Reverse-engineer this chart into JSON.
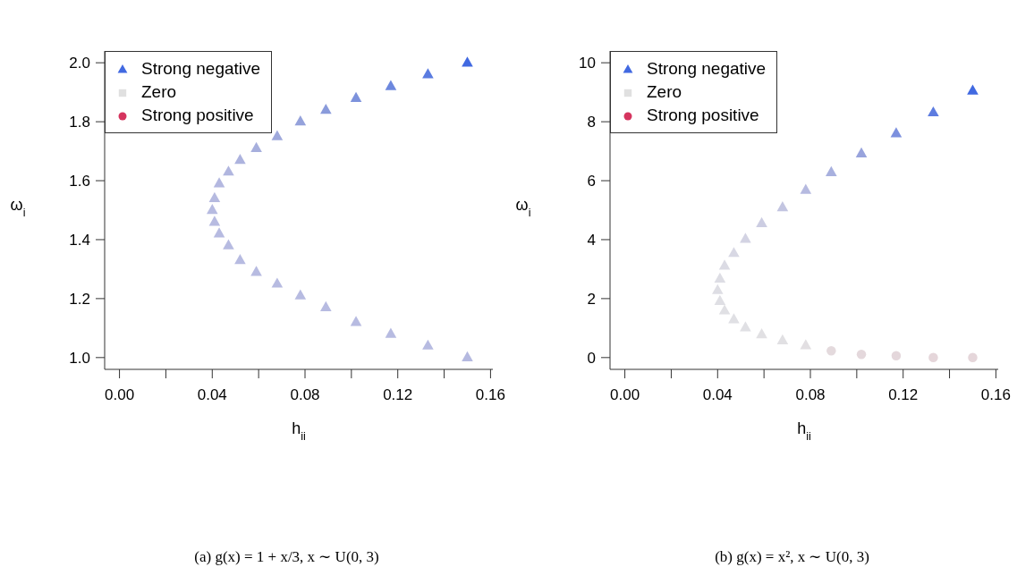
{
  "chart_data": [
    {
      "type": "scatter",
      "xlabel": "h$_{ii}$",
      "ylabel": "ω$_{i}$",
      "xlim": [
        -0.0064,
        0.161
      ],
      "ylim": [
        0.96,
        2.04
      ],
      "xticks": [
        {
          "value": 0,
          "label": "0.00"
        },
        {
          "value": 0.02,
          "label": null
        },
        {
          "value": 0.04,
          "label": "0.04"
        },
        {
          "value": 0.06,
          "label": null
        },
        {
          "value": 0.08,
          "label": "0.08"
        },
        {
          "value": 0.1,
          "label": null
        },
        {
          "value": 0.12,
          "label": "0.12"
        },
        {
          "value": 0.14,
          "label": null
        },
        {
          "value": 0.16,
          "label": "0.16"
        }
      ],
      "yticks": [
        {
          "value": 1,
          "label": "1.0"
        },
        {
          "value": 1.2,
          "label": "1.2"
        },
        {
          "value": 1.4,
          "label": "1.4"
        },
        {
          "value": 1.6,
          "label": "1.6"
        },
        {
          "value": 1.8,
          "label": "1.8"
        },
        {
          "value": 2,
          "label": "2.0"
        }
      ],
      "legend": "top left",
      "annotations": [
        "(a) g(x) = 1 + x/3, x ∼ U(0, 3)"
      ],
      "series": [
        {
          "name": "Strong negative",
          "color": "#4169e1",
          "marker": "triangle",
          "x": [
            0.15,
            0.133,
            0.117,
            0.102,
            0.089,
            0.078,
            0.068,
            0.059,
            0.052,
            0.047,
            0.043,
            0.041,
            0.04,
            0.041,
            0.043,
            0.047,
            0.052,
            0.059,
            0.068,
            0.078,
            0.089,
            0.102,
            0.117,
            0.133,
            0.15
          ],
          "values": [
            2.0,
            1.96,
            1.92,
            1.88,
            1.84,
            1.8,
            1.75,
            1.71,
            1.67,
            1.63,
            1.59,
            1.54,
            1.5,
            1.46,
            1.42,
            1.38,
            1.33,
            1.29,
            1.25,
            1.21,
            1.17,
            1.12,
            1.08,
            1.04,
            1.0
          ],
          "colors": [
            "#4169e1",
            "#5a7be0",
            "#6d88de",
            "#7d92dc",
            "#8a9bdb",
            "#95a2db",
            "#9fa9dc",
            "#a7afdd",
            "#adb3de",
            "#b1b6df",
            "#b4b8e0",
            "#b6bae0",
            "#b7bbe1",
            "#b7bbe1",
            "#b7bbe1",
            "#b7bbe1",
            "#b7bbe1",
            "#b7bbe1",
            "#b7bbe1",
            "#b7bbe1",
            "#b7bbe1",
            "#b7bbe1",
            "#b7bbe1",
            "#b7bbe1",
            "#b5b9e0"
          ]
        },
        {
          "name": "Zero",
          "color": "#e0e0e0",
          "marker": "square"
        },
        {
          "name": "Strong positive",
          "color": "#d5345e",
          "marker": "circle"
        }
      ]
    },
    {
      "type": "scatter",
      "xlabel": "h$_{ii}$",
      "ylabel": "ω$_{i}$",
      "xlim": [
        -0.0064,
        0.161
      ],
      "ylim": [
        -0.4,
        10.4
      ],
      "xticks": [
        {
          "value": 0,
          "label": "0.00"
        },
        {
          "value": 0.02,
          "label": null
        },
        {
          "value": 0.04,
          "label": "0.04"
        },
        {
          "value": 0.06,
          "label": null
        },
        {
          "value": 0.08,
          "label": "0.08"
        },
        {
          "value": 0.1,
          "label": null
        },
        {
          "value": 0.12,
          "label": "0.12"
        },
        {
          "value": 0.14,
          "label": null
        },
        {
          "value": 0.16,
          "label": "0.16"
        }
      ],
      "yticks": [
        0,
        2,
        4,
        6,
        8,
        10
      ],
      "legend": "top left",
      "annotations": [
        "(b) g(x) = x², x ∼ U(0, 3)"
      ],
      "series": [
        {
          "name": "Strong negative",
          "color": "#4169e1",
          "marker": "triangle",
          "x": [
            0.15,
            0.133,
            0.117,
            0.102,
            0.089,
            0.078,
            0.068,
            0.059,
            0.052,
            0.047,
            0.043,
            0.041,
            0.04,
            0.041,
            0.043,
            0.047,
            0.052,
            0.059,
            0.068,
            0.078
          ],
          "values": [
            9.05,
            8.31,
            7.6,
            6.92,
            6.28,
            5.68,
            5.09,
            4.55,
            4.02,
            3.54,
            3.11,
            2.67,
            2.28,
            1.91,
            1.59,
            1.29,
            1.02,
            0.78,
            0.58,
            0.41
          ],
          "colors": [
            "#4169e1",
            "#5d7ce0",
            "#7c90de",
            "#98a3dc",
            "#a8b0de",
            "#b6bae0",
            "#c3c5e1",
            "#cccde2",
            "#d3d3e3",
            "#d8d8e4",
            "#dbdbe4",
            "#dddde4",
            "#dedee4",
            "#dfdfe4",
            "#e0e0e4",
            "#e0e0e4",
            "#e0e0e4",
            "#e1e0e3",
            "#e1e0e3",
            "#e2dfe2"
          ]
        },
        {
          "name": "Zero",
          "color": "#e0e0e0",
          "marker": "square"
        },
        {
          "name": "Strong positive",
          "color": "#d5345e",
          "marker": "circle"
        },
        {
          "marker": "circle",
          "x": [
            0.089,
            0.102,
            0.117,
            0.133,
            0.15
          ],
          "values": [
            0.23,
            0.11,
            0.06,
            0.0,
            0.0
          ],
          "colors": [
            "#e4dadd",
            "#e4d8dc",
            "#e4d7db",
            "#e5d6da",
            "#e5d6da"
          ]
        }
      ]
    }
  ]
}
